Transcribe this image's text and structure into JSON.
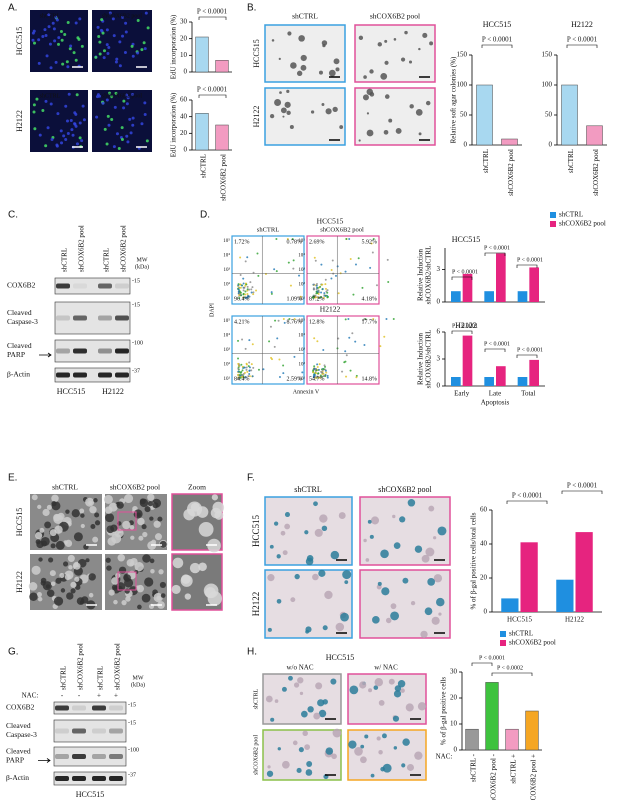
{
  "A": {
    "label": "A.",
    "rows": [
      "HCC515",
      "H2122"
    ],
    "columns": [
      "shCTRL",
      "shCOX6B2 pool"
    ],
    "charts": [
      {
        "type": "bar",
        "ylabel": "EdU incorporation (%)",
        "annotations": [
          "P < 0.0001"
        ],
        "values": [
          21,
          7
        ],
        "colors": [
          "#a8d8f0",
          "#f29bc1"
        ],
        "ylim": [
          0,
          30
        ],
        "yticks": [
          0,
          10,
          20,
          30
        ]
      },
      {
        "type": "bar",
        "ylabel": "EdU incorporation (%)",
        "annotations": [
          "P < 0.0001"
        ],
        "categories": [
          "shCTRL",
          "shCOX6B2 pool"
        ],
        "values": [
          44,
          30
        ],
        "colors": [
          "#a8d8f0",
          "#f29bc1"
        ],
        "ylim": [
          0,
          60
        ],
        "yticks": [
          0,
          20,
          40,
          60
        ]
      }
    ]
  },
  "B": {
    "label": "B.",
    "rows": [
      "HCC515",
      "H2122"
    ],
    "columns": [
      "shCTRL",
      "shCOX6B2 pool"
    ],
    "charts": [
      {
        "type": "bar",
        "title": "HCC515",
        "ylabel": "Relative soft agar colonies (%)",
        "annotations": [
          "P < 0.0001"
        ],
        "categories": [
          "shCTRL",
          "shCOX6B2 pool"
        ],
        "values": [
          100,
          10
        ],
        "colors": [
          "#a8d8f0",
          "#f29bc1"
        ],
        "ylim": [
          0,
          150
        ],
        "yticks": [
          0,
          50,
          100,
          150
        ]
      },
      {
        "type": "bar",
        "title": "H2122",
        "annotations": [
          "P < 0.0001"
        ],
        "categories": [
          "shCTRL",
          "shCOX6B2 pool"
        ],
        "values": [
          100,
          32
        ],
        "colors": [
          "#a8d8f0",
          "#f29bc1"
        ],
        "ylim": [
          0,
          150
        ],
        "yticks": [
          0,
          50,
          100,
          150
        ]
      }
    ]
  },
  "C": {
    "label": "C.",
    "lanes": [
      "shCTRL",
      "shCOX6B2 pool",
      "shCTRL",
      "shCOX6B2 pool"
    ],
    "mw_label": [
      "MW",
      "(kDa)"
    ],
    "proteins": [
      [
        "COX6B2"
      ],
      [
        "Cleaved",
        "Caspase-3"
      ],
      [
        "Cleaved",
        "PARP"
      ],
      [
        "β-Actin"
      ]
    ],
    "markers": [
      "-15",
      "-15",
      "-100",
      "-37"
    ],
    "cells": [
      "HCC515",
      "H2122"
    ]
  },
  "D": {
    "label": "D.",
    "cells": [
      "HCC515",
      "H2122"
    ],
    "columns": [
      "shCTRL",
      "shCOX6B2 pool"
    ],
    "axis_ticks": [
      "10⁵",
      "10⁴",
      "10³",
      "10²",
      "10¹"
    ],
    "ylabel": "DAPI",
    "xlabel": "Annexin V",
    "quadrants": [
      [
        "1.72%",
        "0.78%",
        "96.4%",
        "1.09%"
      ],
      [
        "2.69%",
        "5.92%",
        "87.2%",
        "4.18%"
      ],
      [
        "4.21%",
        "8.76%",
        "84.4%",
        "2.59%"
      ],
      [
        "12.8%",
        "17.7%",
        "54.7%",
        "14.8%"
      ]
    ],
    "charts": [
      {
        "type": "bar",
        "title": "HCC515",
        "ylabel": [
          "Relative Induction",
          "shCOX6B2/shCTRL"
        ],
        "annotations": [
          "P < 0.0001",
          "P < 0.0001",
          "P < 0.0001"
        ],
        "series": [
          {
            "name": "shCTRL",
            "color": "#1f8fe0",
            "values": [
              1,
              1,
              1
            ]
          },
          {
            "name": "shCOX6B2 pool",
            "color": "#e6247f",
            "values": [
              2.6,
              4.5,
              3.2
            ]
          }
        ],
        "ylim": [
          0,
          5
        ],
        "yticks": [
          0,
          3
        ]
      },
      {
        "type": "bar",
        "title": "H2122",
        "ylabel": [
          "Relative Induction",
          "shCOX6B2/shCTRL"
        ],
        "annotations": [
          "P < 0.0001",
          "P < 0.0001",
          "P < 0.0001"
        ],
        "categories": [
          "Early",
          "Late",
          "Total"
        ],
        "xlabel": "Apoptosis",
        "series": [
          {
            "color": "#1f8fe0",
            "values": [
              1,
              1,
              1
            ]
          },
          {
            "color": "#e6247f",
            "values": [
              5.6,
              2.2,
              2.9
            ]
          }
        ],
        "ylim": [
          0,
          6
        ],
        "yticks": [
          0,
          3,
          6
        ]
      }
    ]
  },
  "E": {
    "label": "E.",
    "rows": [
      "HCC515",
      "H2122"
    ],
    "columns": [
      "shCTRL",
      "shCOX6B2 pool",
      "Zoom"
    ]
  },
  "F": {
    "label": "F.",
    "rows": [
      "HCC515",
      "H2122"
    ],
    "columns": [
      "shCTRL",
      "shCOX6B2 pool"
    ],
    "chart": {
      "type": "bar",
      "ylabel": "% of β-gal positive cells/total cells",
      "annotations": [
        "P < 0.0001",
        "P < 0.0001"
      ],
      "categories": [
        "HCC515",
        "H2122"
      ],
      "series": [
        {
          "name": "shCTRL",
          "color": "#1f8fe0",
          "values": [
            8,
            19
          ]
        },
        {
          "name": "shCOX6B2 pool",
          "color": "#e6247f",
          "values": [
            41,
            47
          ]
        }
      ],
      "ylim": [
        0,
        60
      ],
      "yticks": [
        0,
        20,
        40,
        60
      ]
    }
  },
  "G": {
    "label": "G.",
    "lanes": [
      "shCTRL",
      "shCOX6B2 pool",
      "shCTRL",
      "shCOX6B2 pool"
    ],
    "nac_label": "NAC:",
    "nac": [
      "-",
      "-",
      "+",
      "+"
    ],
    "mw_label": [
      "MW",
      "(kDa)"
    ],
    "proteins": [
      [
        "COX6B2"
      ],
      [
        "Cleaved",
        "Caspase-3"
      ],
      [
        "Cleaved",
        "PARP"
      ],
      [
        "β-Actin"
      ]
    ],
    "markers": [
      "-15",
      "-15",
      "-100",
      "-37"
    ],
    "cells": [
      "HCC515"
    ]
  },
  "H": {
    "label": "H.",
    "title": "HCC515",
    "columns": [
      "w/o NAC",
      "w/ NAC"
    ],
    "rows": [
      "shCTRL",
      "shCOX6B2 pool"
    ],
    "chart": {
      "type": "bar",
      "ylabel": "% of β-gal positive cells",
      "xlabel": "NAC:",
      "annotations": [
        "P < 0.0001",
        "P < 0.0002"
      ],
      "categories": [
        "shCTRL -",
        "shCOX6B2 pool -",
        "shCTRL +",
        "shCOX6B2 pool +"
      ],
      "values": [
        8,
        26,
        8,
        15
      ],
      "colors": [
        "#999999",
        "#3ec23e",
        "#f29bc1",
        "#f5a623"
      ],
      "ylim": [
        0,
        30
      ],
      "yticks": [
        0,
        10,
        20,
        30
      ]
    }
  }
}
